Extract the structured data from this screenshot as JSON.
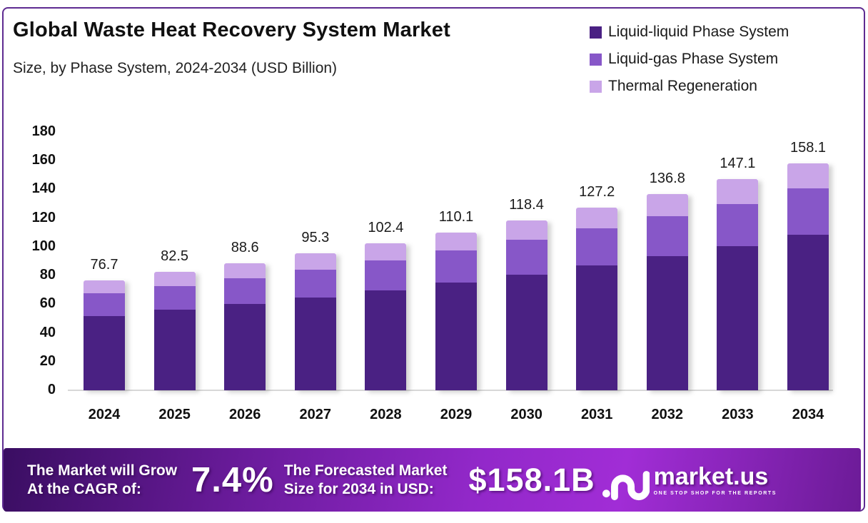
{
  "header": {
    "title": "Global Waste Heat Recovery System Market",
    "subtitle": "Size, by Phase System, 2024-2034 (USD Billion)"
  },
  "chart_data": {
    "type": "bar",
    "stacked": true,
    "title": "Global Waste Heat Recovery System Market Size, by Phase System, 2024-2034 (USD Billion)",
    "categories": [
      "2024",
      "2025",
      "2026",
      "2027",
      "2028",
      "2029",
      "2030",
      "2031",
      "2032",
      "2033",
      "2034"
    ],
    "series": [
      {
        "name": "Liquid-liquid Phase System",
        "color": "#4a2183",
        "values": [
          51.8,
          56.0,
          60.3,
          64.4,
          69.8,
          75.0,
          80.6,
          86.9,
          93.5,
          100.3,
          108.3
        ]
      },
      {
        "name": "Liquid-gas Phase System",
        "color": "#8757c8",
        "values": [
          16.0,
          16.5,
          17.6,
          19.5,
          20.8,
          22.3,
          24.4,
          25.8,
          27.6,
          29.7,
          32.3
        ]
      },
      {
        "name": "Thermal Regeneration",
        "color": "#c9a5e8",
        "values": [
          8.9,
          10.0,
          10.7,
          11.4,
          11.8,
          12.8,
          13.4,
          14.5,
          15.7,
          17.1,
          17.5
        ]
      }
    ],
    "totals": [
      76.7,
      82.5,
      88.6,
      95.3,
      102.4,
      110.1,
      118.4,
      127.2,
      136.8,
      147.1,
      158.1
    ],
    "xlabel": "",
    "ylabel": "",
    "ylim": [
      0,
      180
    ],
    "yticks": [
      0,
      20,
      40,
      60,
      80,
      100,
      120,
      140,
      160,
      180
    ],
    "grid": false,
    "legend_position": "top-right",
    "value_labels": "total above each bar"
  },
  "footer": {
    "cagr_label_line1": "The Market will Grow",
    "cagr_label_line2": "At the CAGR of:",
    "cagr_value": "7.4%",
    "forecast_label_line1": "The Forecasted Market",
    "forecast_label_line2": "Size for 2034 in USD:",
    "forecast_value": "$158.1B",
    "brand": "market.us",
    "brand_tagline": "ONE STOP SHOP FOR THE REPORTS"
  },
  "colors": {
    "frame_border": "#5e2b91",
    "banner_dark": "#3a0e62",
    "banner_bright": "#a12dd6",
    "axis_line": "#d8d8d8"
  }
}
